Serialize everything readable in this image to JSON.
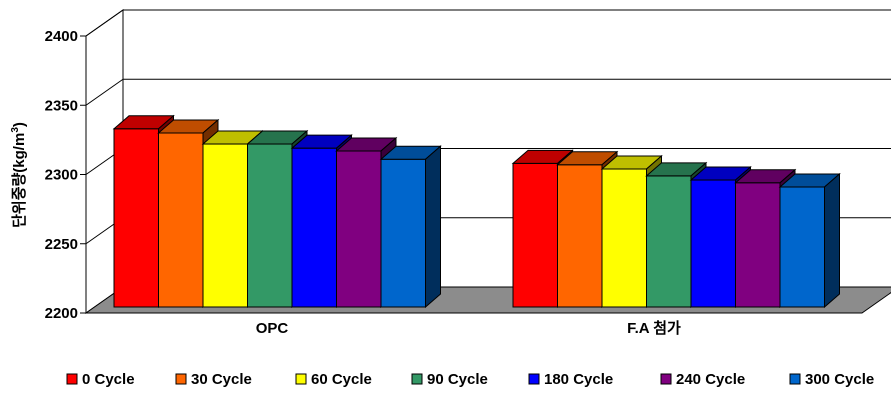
{
  "chart_data": {
    "type": "bar",
    "style": "3d-clustered",
    "title": "",
    "ylabel": "단위중량(kg/m3)",
    "ylabel_text": "단위중량(kg/m",
    "ylabel_sup": "3",
    "ylabel_close": ")",
    "xlabel": "",
    "ylim": [
      2200,
      2400
    ],
    "yticks": [
      2200,
      2250,
      2300,
      2350,
      2400
    ],
    "grid": true,
    "legend_position": "bottom",
    "categories": [
      "OPC",
      "F.A 첨가"
    ],
    "series": [
      {
        "name": "0 Cycle",
        "color": "#ff0000",
        "values": [
          2333,
          2308
        ]
      },
      {
        "name": "30 Cycle",
        "color": "#ff6600",
        "values": [
          2330,
          2307
        ]
      },
      {
        "name": "60 Cycle",
        "color": "#ffff00",
        "values": [
          2322,
          2304
        ]
      },
      {
        "name": "90 Cycle",
        "color": "#339966",
        "values": [
          2322,
          2299
        ]
      },
      {
        "name": "180 Cycle",
        "color": "#0000ff",
        "values": [
          2319,
          2296
        ]
      },
      {
        "name": "240 Cycle",
        "color": "#800080",
        "values": [
          2317,
          2294
        ]
      },
      {
        "name": "300 Cycle",
        "color": "#0066cc",
        "values": [
          2311,
          2291
        ]
      }
    ]
  }
}
